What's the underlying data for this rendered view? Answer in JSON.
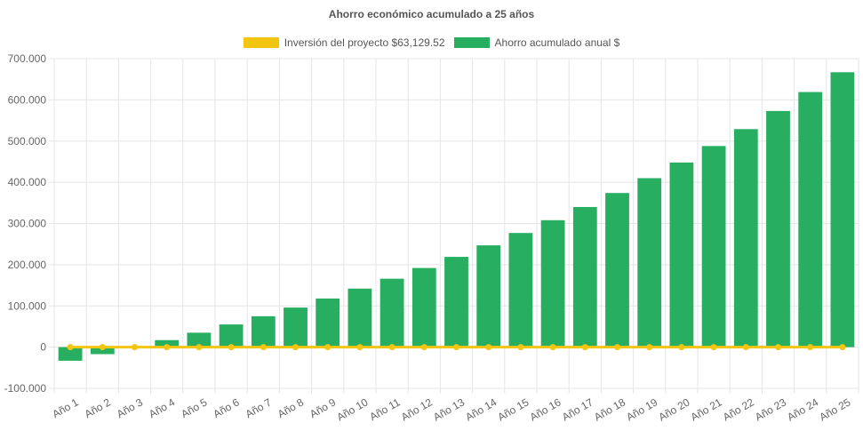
{
  "chart_data": {
    "type": "bar",
    "title": "Ahorro económico acumulado a 25 años",
    "categories": [
      "Año 1",
      "Año 2",
      "Año 3",
      "Año 4",
      "Año 5",
      "Año 6",
      "Año 7",
      "Año 8",
      "Año 9",
      "Año 10",
      "Año 11",
      "Año 12",
      "Año 13",
      "Año 14",
      "Año 15",
      "Año 16",
      "Año 17",
      "Año 18",
      "Año 19",
      "Año 20",
      "Año 21",
      "Año 22",
      "Año 23",
      "Año 24",
      "Año 25"
    ],
    "ylim": [
      -100000,
      700000
    ],
    "yticks": [
      -100000,
      0,
      100000,
      200000,
      300000,
      400000,
      500000,
      600000,
      700000
    ],
    "ytick_labels": [
      "-100.000",
      "0",
      "100.000",
      "200.000",
      "300.000",
      "400.000",
      "500.000",
      "600.000",
      "700.000"
    ],
    "grid": true,
    "legend_position": "top",
    "series": [
      {
        "name": "Inversión del proyecto $63,129.52",
        "type": "line",
        "color": "#f2c511",
        "values": [
          0,
          0,
          0,
          0,
          0,
          0,
          0,
          0,
          0,
          0,
          0,
          0,
          0,
          0,
          0,
          0,
          0,
          0,
          0,
          0,
          0,
          0,
          0,
          0,
          0
        ]
      },
      {
        "name": "Ahorro acumulado anual $",
        "type": "bar",
        "color": "#27ae60",
        "values": [
          -33000,
          -17000,
          0,
          17000,
          35000,
          55000,
          75000,
          96000,
          118000,
          142000,
          166000,
          192000,
          219000,
          247000,
          277000,
          308000,
          340000,
          374000,
          410000,
          448000,
          488000,
          529000,
          573000,
          619000,
          667000
        ]
      }
    ]
  }
}
